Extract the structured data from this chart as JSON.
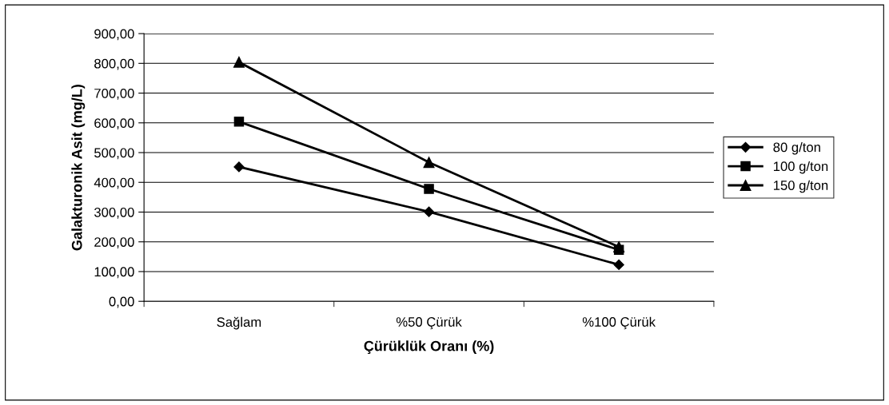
{
  "chart_data": {
    "type": "line",
    "xlabel": "Çürüklük Oranı (%)",
    "ylabel": "Galakturonik Asit (mg/L)",
    "categories": [
      "Sağlam",
      "%50 Çürük",
      "%100 Çürük"
    ],
    "series": [
      {
        "name": "80 g/ton",
        "color": "#000000",
        "marker": "diamond",
        "values": [
          452,
          301,
          123
        ]
      },
      {
        "name": "100 g/ton",
        "color": "#000000",
        "marker": "square",
        "values": [
          604,
          378,
          173
        ]
      },
      {
        "name": "150 g/ton",
        "color": "#000000",
        "marker": "triangle",
        "values": [
          804,
          467,
          183
        ]
      }
    ],
    "ylim": [
      0,
      900
    ],
    "yticks": [
      {
        "value": 0,
        "label": "0,00"
      },
      {
        "value": 100,
        "label": "100,00"
      },
      {
        "value": 200,
        "label": "200,00"
      },
      {
        "value": 300,
        "label": "300,00"
      },
      {
        "value": 400,
        "label": "400,00"
      },
      {
        "value": 500,
        "label": "500,00"
      },
      {
        "value": 600,
        "label": "600,00"
      },
      {
        "value": 700,
        "label": "700,00"
      },
      {
        "value": 800,
        "label": "800,00"
      },
      {
        "value": 900,
        "label": "900,00"
      }
    ],
    "grid": "y",
    "legend": "right",
    "line_style": "solid"
  }
}
